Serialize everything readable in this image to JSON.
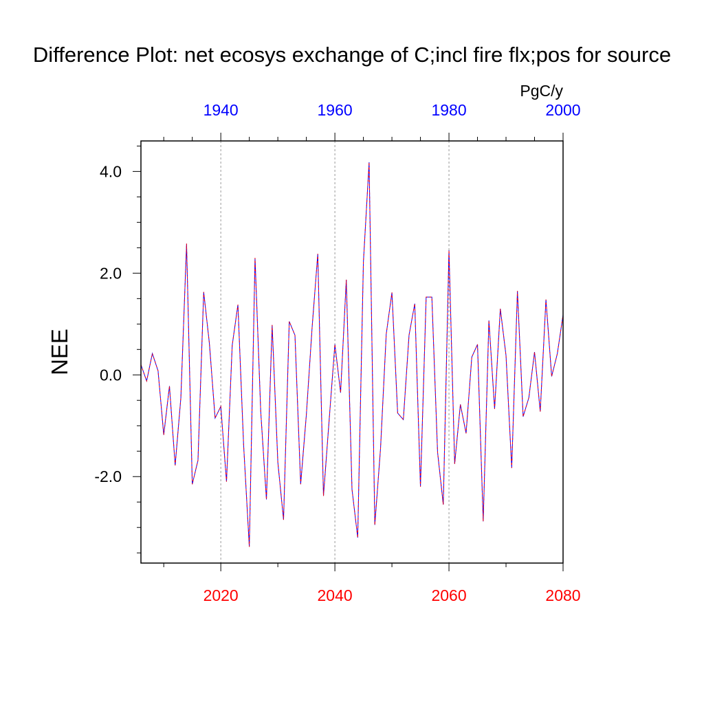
{
  "chart_data": {
    "type": "line",
    "title": "Difference Plot: net ecosys exchange of C;incl fire flx;pos for source",
    "ylabel": "NEE",
    "units": "PgC/y",
    "ylim": [
      -3.7,
      4.6
    ],
    "yticks": [
      -2.0,
      0.0,
      2.0,
      4.0
    ],
    "ytick_labels": [
      "-2.0",
      "0.0",
      "2.0",
      "4.0"
    ],
    "grid": false,
    "colors": {
      "bottom_axis": "#ff0000",
      "top_axis": "#0000ff",
      "line_primary": "#0000ff",
      "line_overlay": "#ff0000",
      "reference_lines": "#999999"
    },
    "bottom_axis": {
      "xlim": [
        2006,
        2080
      ],
      "ticks": [
        2020,
        2040,
        2060,
        2080
      ],
      "tick_labels": [
        "2020",
        "2040",
        "2060",
        "2080"
      ]
    },
    "top_axis": {
      "xlim": [
        1926,
        2000
      ],
      "ticks": [
        1940,
        1960,
        1980,
        2000
      ],
      "tick_labels": [
        "1940",
        "1960",
        "1980",
        "2000"
      ]
    },
    "reference_lines_x": [
      2020,
      2040,
      2060
    ],
    "x": [
      2006,
      2007,
      2008,
      2009,
      2010,
      2011,
      2012,
      2013,
      2014,
      2015,
      2016,
      2017,
      2018,
      2019,
      2020,
      2021,
      2022,
      2023,
      2024,
      2025,
      2026,
      2027,
      2028,
      2029,
      2030,
      2031,
      2032,
      2033,
      2034,
      2035,
      2036,
      2037,
      2038,
      2039,
      2040,
      2041,
      2042,
      2043,
      2044,
      2045,
      2046,
      2047,
      2048,
      2049,
      2050,
      2051,
      2052,
      2053,
      2054,
      2055,
      2056,
      2057,
      2058,
      2059,
      2060,
      2061,
      2062,
      2063,
      2064,
      2065,
      2066,
      2067,
      2068,
      2069,
      2070,
      2071,
      2072,
      2073,
      2074,
      2075,
      2076,
      2077,
      2078,
      2079,
      2080
    ],
    "series": [
      {
        "values": [
          0.2,
          -0.12,
          0.42,
          0.08,
          -1.18,
          -0.22,
          -1.78,
          -0.45,
          2.58,
          -2.15,
          -1.68,
          1.63,
          0.62,
          -0.85,
          -0.62,
          -2.1,
          0.58,
          1.38,
          -1.38,
          -3.38,
          2.3,
          -0.72,
          -2.45,
          0.98,
          -1.72,
          -2.85,
          1.05,
          0.78,
          -2.15,
          -0.78,
          0.92,
          2.38,
          -2.38,
          -0.88,
          0.6,
          -0.35,
          1.87,
          -2.25,
          -3.2,
          2.22,
          4.18,
          -2.95,
          -1.45,
          0.8,
          1.62,
          -0.75,
          -0.88,
          0.78,
          1.4,
          -2.2,
          1.53,
          1.53,
          -1.52,
          -2.55,
          2.45,
          -1.75,
          -0.58,
          -1.15,
          0.35,
          0.6,
          -2.88,
          1.07,
          -0.67,
          1.3,
          0.38,
          -1.83,
          1.65,
          -0.82,
          -0.45,
          0.45,
          -0.72,
          1.48,
          -0.03,
          0.42,
          1.18
        ]
      }
    ]
  }
}
